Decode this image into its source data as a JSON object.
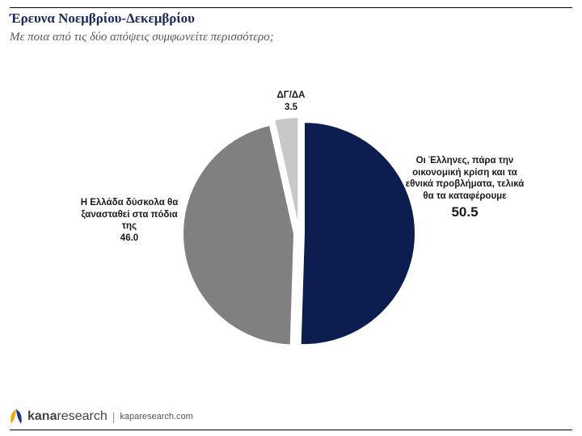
{
  "header": {
    "title": "Έρευνα Νοεμβρίου-Δεκεμβρίου",
    "subtitle": "Με ποια από τις δύο απόψεις συμφωνείτε περισσότερο;"
  },
  "chart_data": {
    "type": "pie",
    "title": "Έρευνα Νοεμβρίου-Δεκεμβρίου",
    "subtitle": "Με ποια από τις δύο απόψεις συμφωνείτε περισσότερο;",
    "slices": [
      {
        "label": "Οι Έλληνες, πάρα την οικονομική κρίση και τα εθνικά προβλήματα, τελικά θα τα καταφέρουμε",
        "value": 50.5,
        "value_label": "50.5",
        "color": "#0c1e4f"
      },
      {
        "label": "Η Ελλάδα δύσκολα θα ξανασταθεί στα πόδια της",
        "value": 46.0,
        "value_label": "46.0",
        "color": "#808080"
      },
      {
        "label": "ΔΓ/ΔΑ",
        "value": 3.5,
        "value_label": "3.5",
        "color": "#c8c8c8"
      }
    ],
    "exploded": true,
    "legend": "none"
  },
  "footer": {
    "brand_a": "kana",
    "brand_b": "research",
    "separator": "|",
    "url": "kaparesearch.com"
  }
}
